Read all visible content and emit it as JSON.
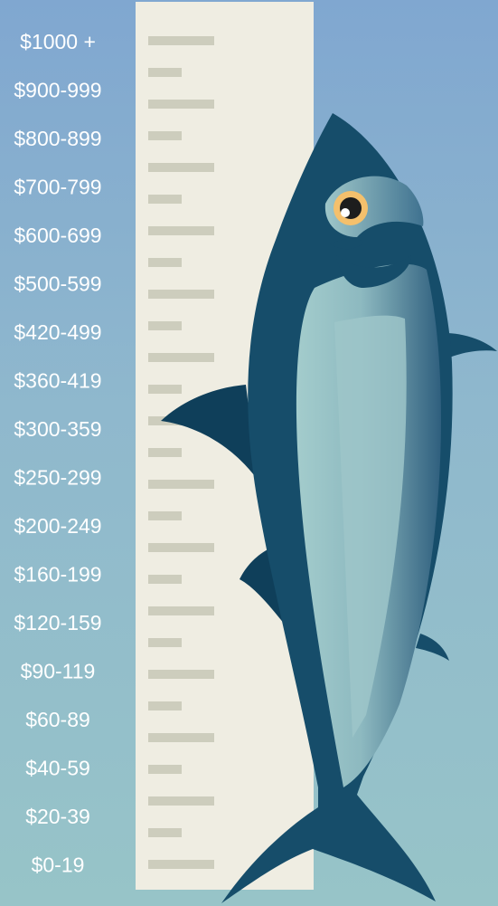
{
  "labels": [
    "$1000 +",
    "$900-999",
    "$800-899",
    "$700-799",
    "$600-699",
    "$500-599",
    "$420-499",
    "$360-419",
    "$300-359",
    "$250-299",
    "$200-249",
    "$160-199",
    "$120-159",
    "$90-119",
    "$60-89",
    "$40-59",
    "$20-39",
    "$0-19"
  ]
}
